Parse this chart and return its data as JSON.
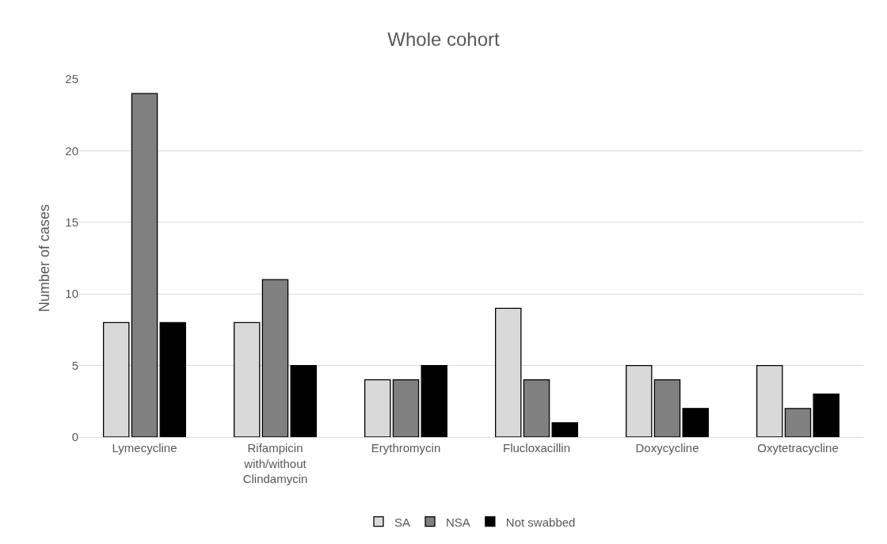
{
  "chart_data": {
    "type": "bar",
    "title": "Whole cohort",
    "ylabel": "Number of cases",
    "categories": [
      "Lymecycline",
      "Rifampicin with/without Clindamycin",
      "Erythromycin",
      "Flucloxacillin",
      "Doxycycline",
      "Oxytetracycline"
    ],
    "series": [
      {
        "name": "SA",
        "color": "#d9d9d9",
        "values": [
          8,
          8,
          4,
          9,
          5,
          5
        ]
      },
      {
        "name": "NSA",
        "color": "#808080",
        "values": [
          24,
          11,
          4,
          4,
          4,
          2
        ]
      },
      {
        "name": "Not swabbed",
        "color": "#000000",
        "values": [
          8,
          5,
          5,
          1,
          2,
          3
        ]
      }
    ],
    "ylim": [
      0,
      25
    ],
    "yticks": [
      0,
      5,
      10,
      15,
      20,
      25
    ],
    "grid": "y",
    "legend": "bottom"
  }
}
